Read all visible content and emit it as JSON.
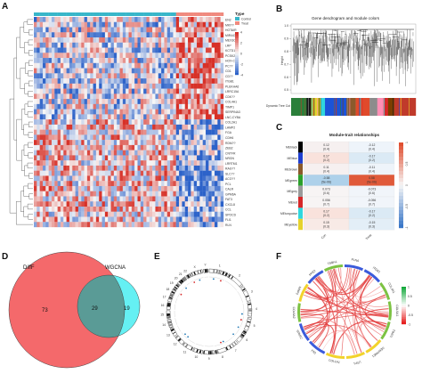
{
  "panels": {
    "A": "A",
    "B": "B",
    "C": "C",
    "D": "D",
    "E": "E",
    "F": "F"
  },
  "heatmap": {
    "legend_title": "Type",
    "legend_items": [
      {
        "label": "Control",
        "color": "#38b6c9"
      },
      {
        "label": "Treat",
        "color": "#f08a7e"
      }
    ],
    "scale_ticks": [
      "4",
      "2",
      "0",
      "-2",
      "-4"
    ],
    "scale_colors": [
      "#d7191c",
      "#f4a582",
      "#f7f7f7",
      "#92c5de",
      "#2c62c9"
    ],
    "genes": [
      "EN2",
      "MKI??",
      "HOTAIR",
      "MIR4435",
      "MEX3C",
      "LRP",
      "KCTD12",
      "PCSK2",
      "HOX-C",
      "PC??",
      "CD1",
      "CD??",
      "ITGB1",
      "PLEKHA6",
      "LRRC15A",
      "CDK??",
      "COL4A1",
      "TIMP1",
      "SERPINA3",
      "LNC-CYBA",
      "COL2A1",
      "LAMP2",
      "FGA",
      "CDH6",
      "RDM??",
      "ZEB2",
      "CNTFR",
      "NRGN",
      "LRRTM1",
      "RAG??",
      "SLC??",
      "ACO??",
      "PCL",
      "CALR",
      "GPM6A",
      "FAT3",
      "CXCL8",
      "CCL",
      "SPOCD",
      "FLI1",
      "RLN"
    ],
    "n_cols": 64,
    "n_control": 48
  },
  "dendrogram": {
    "title": "Gene dendrogram and module colors",
    "ylabel": "Height",
    "yticks": [
      "1.0",
      "0.9",
      "0.8",
      "0.7",
      "0.6",
      "0.5"
    ],
    "row_label": "Dynamic Tree Cut",
    "module_colors": [
      "#2a7f3a",
      "#1a1a1a",
      "#e6d22c",
      "#2fd7de",
      "#1b53d8",
      "#8b5a2b",
      "#e04a2b",
      "#8c8c8c",
      "#ff8fb5",
      "#d62728",
      "#7b3f00",
      "#c03a2b"
    ]
  },
  "module_trait": {
    "title": "Module-trait relationships",
    "modules": [
      {
        "name": "MEblack",
        "color": "#000000",
        "con": "0.12\n(0.4)",
        "treat": "-0.12\n(0.4)",
        "cc": "#f6f0f0",
        "tc": "#eef4fa"
      },
      {
        "name": "MEblue",
        "color": "#1f3fd0",
        "con": "0.17\n(0.2)",
        "treat": "-0.17\n(0.2)",
        "cc": "#f9e2dc",
        "tc": "#dbeaf5"
      },
      {
        "name": "MEbrown",
        "color": "#8b5a2b",
        "con": "0.11\n(0.4)",
        "treat": "-0.11\n(0.4)",
        "cc": "#f6f0f0",
        "tc": "#eef4fa"
      },
      {
        "name": "MEgreen",
        "color": "#2ca02c",
        "con": "-0.58\n(5e-06)",
        "treat": "0.58\n(5e-06)",
        "cc": "#aed1ea",
        "tc": "#e05a3a"
      },
      {
        "name": "MEgrey",
        "color": "#9a9a9a",
        "con": "0.073\n(0.6)",
        "treat": "-0.073\n(0.6)",
        "cc": "#f7f4f4",
        "tc": "#f1f5fa"
      },
      {
        "name": "MEred",
        "color": "#d62728",
        "con": "0.056\n(0.7)",
        "treat": "-0.056\n(0.7)",
        "cc": "#f7f4f4",
        "tc": "#f1f5fa"
      },
      {
        "name": "MEturquoise",
        "color": "#2fd7de",
        "con": "0.17\n(0.2)",
        "treat": "-0.17\n(0.2)",
        "cc": "#f9e2dc",
        "tc": "#dbeaf5"
      },
      {
        "name": "MEyellow",
        "color": "#e6d22c",
        "con": "0.15\n(0.3)",
        "treat": "-0.15\n(0.3)",
        "cc": "#f8eae6",
        "tc": "#e3eef7"
      }
    ],
    "traits": [
      "Con",
      "Treat"
    ],
    "scale_ticks": [
      "1",
      "0.5",
      "0",
      "-0.5",
      "-1"
    ]
  },
  "venn": {
    "left_label": "DiffF",
    "right_label": "WGCNA",
    "left_only": "73",
    "overlap": "29",
    "right_only": "19",
    "left_color": "#f4696b",
    "right_color": "#65f0f3"
  },
  "circos": {
    "chromosomes": [
      "1",
      "2",
      "3",
      "4",
      "5",
      "6",
      "7",
      "8",
      "9",
      "10",
      "11",
      "12",
      "13",
      "14",
      "15",
      "16",
      "17",
      "18",
      "19",
      "20",
      "21",
      "22",
      "X",
      "Y"
    ]
  },
  "chord": {
    "genes": [
      "FLNA",
      "ITGB1",
      "COL4A1",
      "COL5A1",
      "TIMP1",
      "SERPINE1",
      "LRP1",
      "COL1A1",
      "FN1",
      "SPARC",
      "COL6A2",
      "MMP2",
      "CD44",
      "THBS1"
    ],
    "scale_ticks": [
      "1",
      "0.5",
      "0",
      "-0.5",
      "-1"
    ]
  }
}
